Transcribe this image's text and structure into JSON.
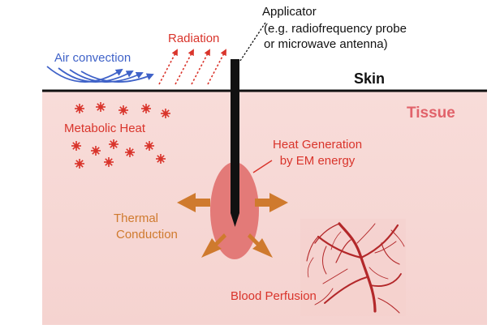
{
  "labels": {
    "applicator": "Applicator",
    "applicator_desc_1": "(e.g. radiofrequency probe",
    "applicator_desc_2": "or microwave antenna)",
    "radiation": "Radiation",
    "air_convection": "Air convection",
    "skin": "Skin",
    "tissue": "Tissue",
    "metabolic_heat": "Metabolic Heat",
    "heat_generation_1": "Heat Generation",
    "heat_generation_2": "by EM energy",
    "thermal_conduction_1": "Thermal",
    "thermal_conduction_2": "Conduction",
    "blood_perfusion": "Blood Perfusion"
  },
  "colors": {
    "tissue_fill": "#f7d9d6",
    "skin_line": "#111111",
    "applicator": "#111111",
    "heat_zone": "#e37a78",
    "conduction_arrows": "#cf7a2e",
    "radiation_arrows": "#d9342b",
    "air_arrows": "#3f62c8",
    "metabolic_stars": "#d9342b",
    "vessels": "#b3282a",
    "text_dark": "#111111",
    "text_red": "#d9342b",
    "text_blue": "#3f62c8",
    "text_orange": "#cf7a2e",
    "text_pink": "#e1626a"
  },
  "icons": [
    "radiation-arrow-icon",
    "air-convection-arrow-icon",
    "metabolic-heat-star-icon",
    "conduction-arrow-icon",
    "blood-vessel-network-icon"
  ]
}
